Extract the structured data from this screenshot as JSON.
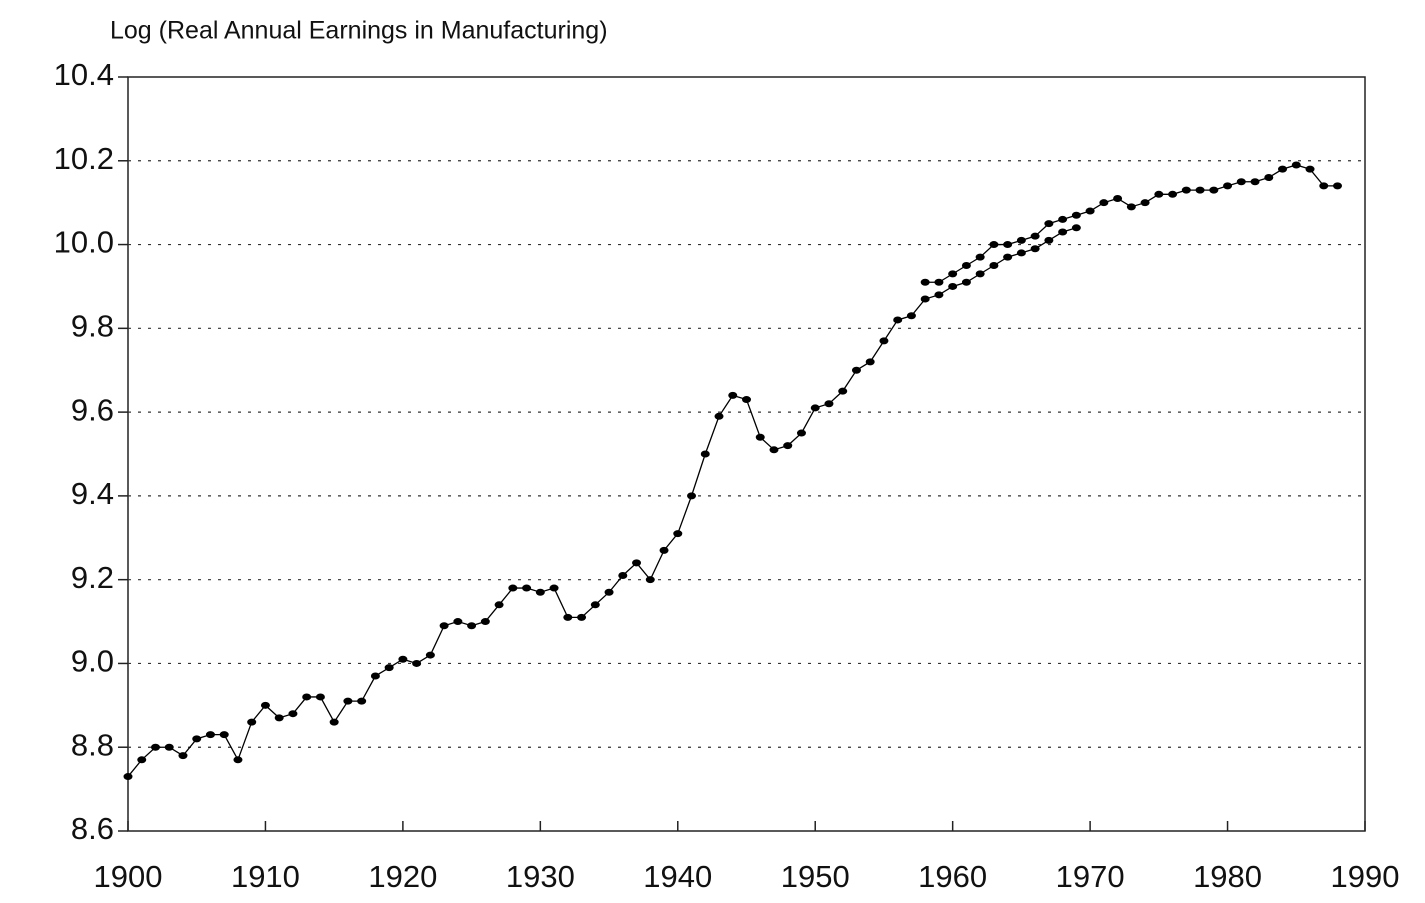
{
  "chart_data": {
    "type": "line",
    "y_axis_label": "Log (Real Annual Earnings in Manufacturing)",
    "x": [
      1900,
      1901,
      1902,
      1903,
      1904,
      1905,
      1906,
      1907,
      1908,
      1909,
      1910,
      1911,
      1912,
      1913,
      1914,
      1915,
      1916,
      1917,
      1918,
      1919,
      1920,
      1921,
      1922,
      1923,
      1924,
      1925,
      1926,
      1927,
      1928,
      1929,
      1930,
      1931,
      1932,
      1933,
      1934,
      1935,
      1936,
      1937,
      1938,
      1939,
      1940,
      1941,
      1942,
      1943,
      1944,
      1945,
      1946,
      1947,
      1948,
      1949,
      1950,
      1951,
      1952,
      1953,
      1954,
      1955,
      1956,
      1957,
      1958,
      1959,
      1960,
      1961,
      1962,
      1963,
      1964,
      1965,
      1966,
      1967,
      1968,
      1969,
      1970,
      1971,
      1972,
      1973,
      1974,
      1975,
      1976,
      1977,
      1978,
      1979,
      1980,
      1981,
      1982,
      1983,
      1984,
      1985,
      1986,
      1987,
      1988
    ],
    "series": [
      {
        "color": "#000000",
        "values": [
          8.73,
          8.77,
          8.8,
          8.8,
          8.78,
          8.82,
          8.83,
          8.83,
          8.77,
          8.86,
          8.9,
          8.87,
          8.88,
          8.92,
          8.92,
          8.86,
          8.91,
          8.91,
          8.97,
          8.99,
          9.01,
          9.0,
          9.02,
          9.09,
          9.1,
          9.09,
          9.1,
          9.14,
          9.18,
          9.18,
          9.17,
          9.18,
          9.11,
          9.11,
          9.14,
          9.17,
          9.21,
          9.24,
          9.2,
          9.27,
          9.31,
          9.4,
          9.5,
          9.59,
          9.64,
          9.63,
          9.54,
          9.51,
          9.52,
          9.55,
          9.61,
          9.62,
          9.65,
          9.7,
          9.72,
          9.77,
          9.82,
          9.83,
          9.87,
          9.88,
          9.9,
          9.91,
          9.93,
          9.95,
          9.97,
          9.98,
          9.99,
          10.01,
          10.03,
          10.04,
          null,
          null,
          null,
          null,
          null,
          null,
          null,
          null,
          null,
          null,
          null,
          null,
          null,
          null,
          null,
          null,
          null,
          null,
          null
        ]
      },
      {
        "color": "#000000",
        "values": [
          null,
          null,
          null,
          null,
          null,
          null,
          null,
          null,
          null,
          null,
          null,
          null,
          null,
          null,
          null,
          null,
          null,
          null,
          null,
          null,
          null,
          null,
          null,
          null,
          null,
          null,
          null,
          null,
          null,
          null,
          null,
          null,
          null,
          null,
          null,
          null,
          null,
          null,
          null,
          null,
          null,
          null,
          null,
          null,
          null,
          null,
          null,
          null,
          null,
          null,
          null,
          null,
          null,
          null,
          null,
          null,
          null,
          null,
          9.91,
          9.91,
          9.93,
          9.95,
          9.97,
          10.0,
          10.0,
          10.01,
          10.02,
          10.05,
          10.06,
          10.07,
          10.08,
          10.1,
          10.11,
          10.09,
          10.1,
          10.12,
          10.12,
          10.13,
          10.13,
          10.13,
          10.14,
          10.15,
          10.15,
          10.16,
          10.18,
          10.19,
          10.18,
          10.14,
          10.14
        ]
      }
    ],
    "xlim": [
      1900,
      1990
    ],
    "xticks": [
      1900,
      1910,
      1920,
      1930,
      1940,
      1950,
      1960,
      1970,
      1980,
      1990
    ],
    "ylim": [
      8.6,
      10.4
    ],
    "yticks": [
      8.6,
      8.8,
      {
        "value": 9.0,
        "label": "9.0"
      },
      9.2,
      9.4,
      9.6,
      9.8,
      {
        "value": 10.0,
        "label": "10.0"
      },
      10.2,
      10.4
    ],
    "grid": true
  }
}
